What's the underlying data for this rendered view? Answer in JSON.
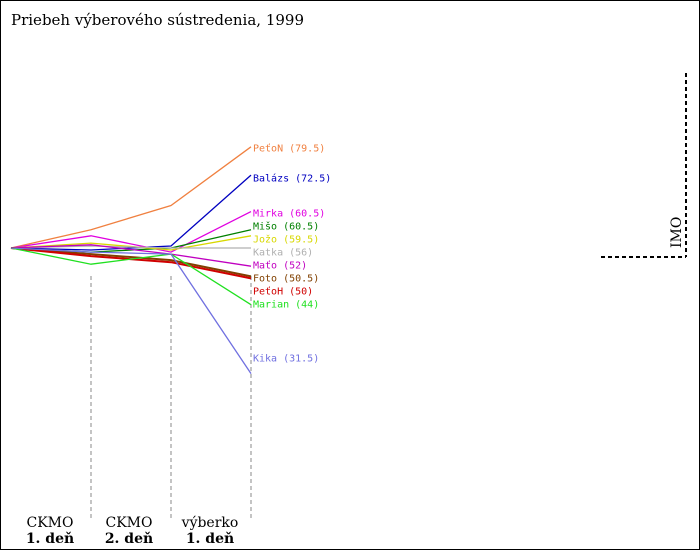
{
  "title": "Priebeh výberového sústredenia, 1999",
  "chart_data": {
    "type": "line",
    "title": "Priebeh výberového sústredenia, 1999",
    "stages": [
      {
        "line1": "CKMO",
        "line2": "1. deň"
      },
      {
        "line1": "CKMO",
        "line2": "2. deň"
      },
      {
        "line1": "výberko",
        "line2": "1. deň"
      }
    ],
    "imo_label": "IMO",
    "series": [
      {
        "name": "PeťoN",
        "final": "79.5",
        "color": "#f08040",
        "values": [
          0,
          4.5,
          10.5,
          25
        ]
      },
      {
        "name": "Balázs",
        "final": "72.5",
        "color": "#0000c0",
        "values": [
          0,
          -0.5,
          0.5,
          18
        ]
      },
      {
        "name": "Mirka",
        "final": "60.5",
        "color": "#e000e0",
        "values": [
          0,
          3,
          -1,
          9
        ]
      },
      {
        "name": "Mišo",
        "final": "60.5",
        "color": "#008000",
        "values": [
          0,
          -1,
          0,
          4.5
        ]
      },
      {
        "name": "Jožo",
        "final": "59.5",
        "color": "#d8d800",
        "values": [
          0,
          1.2,
          -0.5,
          3
        ]
      },
      {
        "name": "Katka",
        "final": "56",
        "color": "#b0b0b0",
        "values": [
          0,
          0.5,
          0,
          0
        ]
      },
      {
        "name": "Maťo",
        "final": "52",
        "color": "#c000c0",
        "values": [
          0,
          0.8,
          -1.5,
          -4.5
        ]
      },
      {
        "name": "Foto",
        "final": "50.5",
        "color": "#804000",
        "values": [
          0,
          -1.5,
          -3,
          -7
        ]
      },
      {
        "name": "PeťoH",
        "final": "50",
        "color": "#d00000",
        "values": [
          0,
          -2,
          -3.5,
          -7.5
        ]
      },
      {
        "name": "Marian",
        "final": "44",
        "color": "#20e020",
        "values": [
          0,
          -4,
          -1.5,
          -14
        ]
      },
      {
        "name": "Kika",
        "final": "31.5",
        "color": "#7070e0",
        "values": [
          0,
          -1,
          -1.5,
          -31
        ]
      }
    ]
  }
}
